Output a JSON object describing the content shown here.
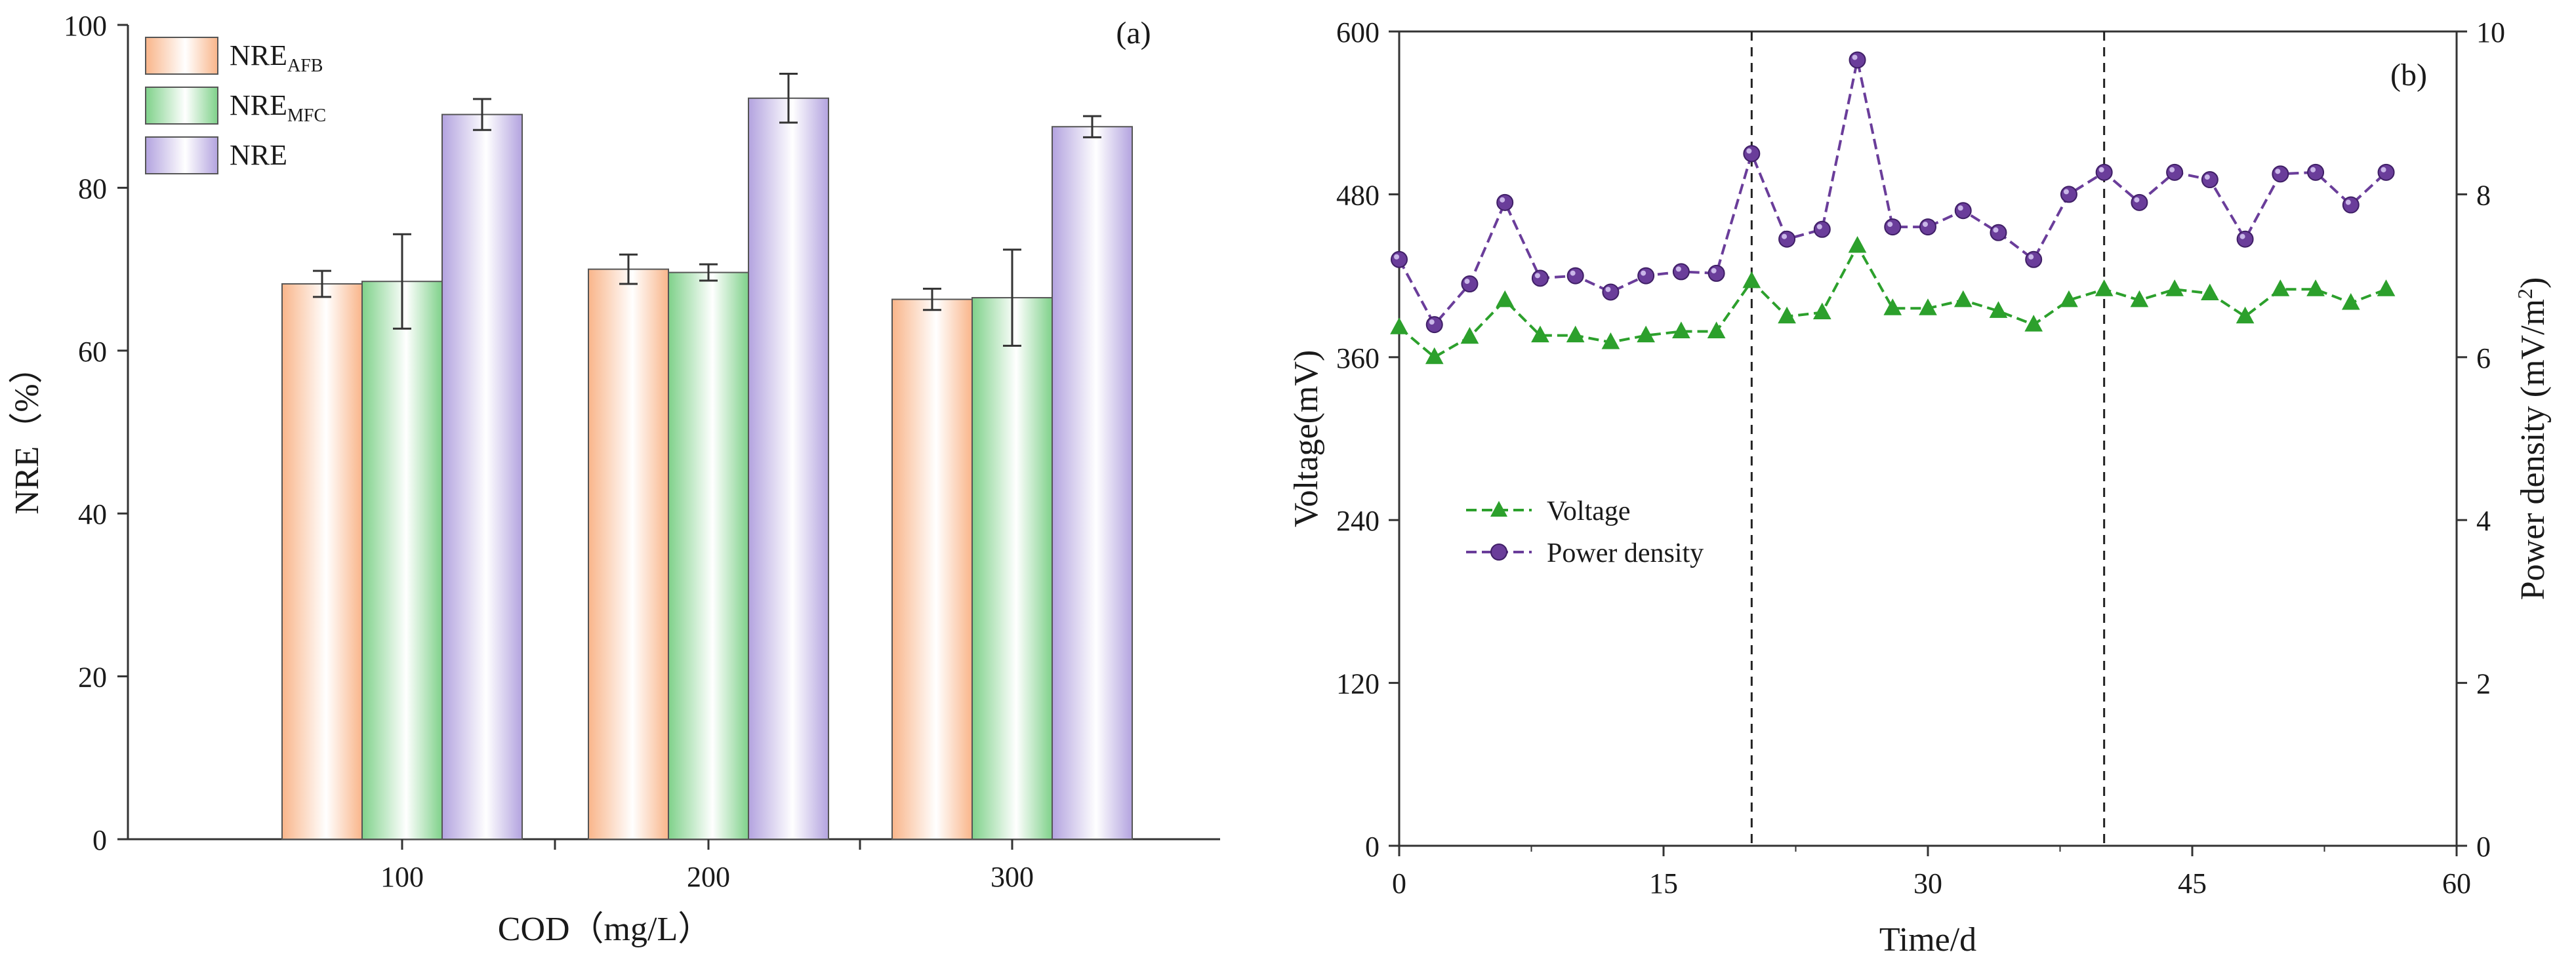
{
  "chart_data": [
    {
      "type": "bar",
      "panel_label": "(a)",
      "xlabel": "COD（mg/L）",
      "ylabel": "NRE（%）",
      "ylim": [
        0,
        100
      ],
      "yticks": [
        0,
        20,
        40,
        60,
        80,
        100
      ],
      "categories": [
        "100",
        "200",
        "300"
      ],
      "series": [
        {
          "name": "NRE",
          "sub": "AFB",
          "color": "#f9b58a",
          "values": [
            68.2,
            70.0,
            66.3
          ],
          "errors": [
            1.6,
            1.8,
            1.3
          ]
        },
        {
          "name": "NRE",
          "sub": "MFC",
          "color": "#7fd18a",
          "values": [
            68.5,
            69.6,
            66.5
          ],
          "errors": [
            5.8,
            1.0,
            5.9
          ]
        },
        {
          "name": "NRE",
          "sub": "",
          "color": "#b3a3df",
          "values": [
            89.0,
            91.0,
            87.5
          ],
          "errors": [
            1.9,
            3.0,
            1.3
          ]
        }
      ],
      "legend_position": "top-left",
      "grid": false
    },
    {
      "type": "line",
      "panel_label": "(b)",
      "xlabel": "Time/d",
      "ylabel": "Voltage(mV)",
      "y2label": "Power density (mV/m",
      "y2label_sup": "2",
      "y2label_end": ")",
      "xlim": [
        0,
        60
      ],
      "xticks": [
        0,
        15,
        30,
        45,
        60
      ],
      "ylim": [
        0,
        600
      ],
      "yticks": [
        0,
        120,
        240,
        360,
        480,
        600
      ],
      "y2lim": [
        0,
        10
      ],
      "y2ticks": [
        0,
        2,
        4,
        6,
        8,
        10
      ],
      "vlines": [
        20,
        40
      ],
      "series": [
        {
          "name": "Voltage",
          "axis": "left",
          "marker": "triangle",
          "color": "#2ca02c",
          "x": [
            0,
            2,
            4,
            6,
            8,
            10,
            12,
            14,
            16,
            18,
            20,
            22,
            24,
            26,
            28,
            30,
            32,
            34,
            36,
            38,
            40,
            42,
            44,
            46,
            48,
            50,
            52,
            54,
            56
          ],
          "y": [
            382,
            360,
            375,
            402,
            376,
            376,
            371,
            376,
            379,
            379,
            416,
            390,
            393,
            442,
            396,
            396,
            402,
            394,
            384,
            402,
            410,
            402,
            410,
            407,
            390,
            410,
            410,
            400,
            410
          ]
        },
        {
          "name": "Power density",
          "axis": "right",
          "marker": "circle",
          "color": "#6a3d9a",
          "x": [
            0,
            2,
            4,
            6,
            8,
            10,
            12,
            14,
            16,
            18,
            20,
            22,
            24,
            26,
            28,
            30,
            32,
            34,
            36,
            38,
            40,
            42,
            44,
            46,
            48,
            50,
            52,
            54,
            56
          ],
          "y": [
            7.2,
            6.4,
            6.9,
            7.9,
            6.97,
            7.0,
            6.8,
            7.0,
            7.05,
            7.03,
            8.5,
            7.45,
            7.57,
            9.65,
            7.6,
            7.6,
            7.8,
            7.53,
            7.2,
            8.0,
            8.27,
            7.9,
            8.27,
            8.18,
            7.45,
            8.25,
            8.27,
            7.87,
            8.27
          ]
        }
      ],
      "legend_position": "middle-left",
      "grid": false
    }
  ]
}
